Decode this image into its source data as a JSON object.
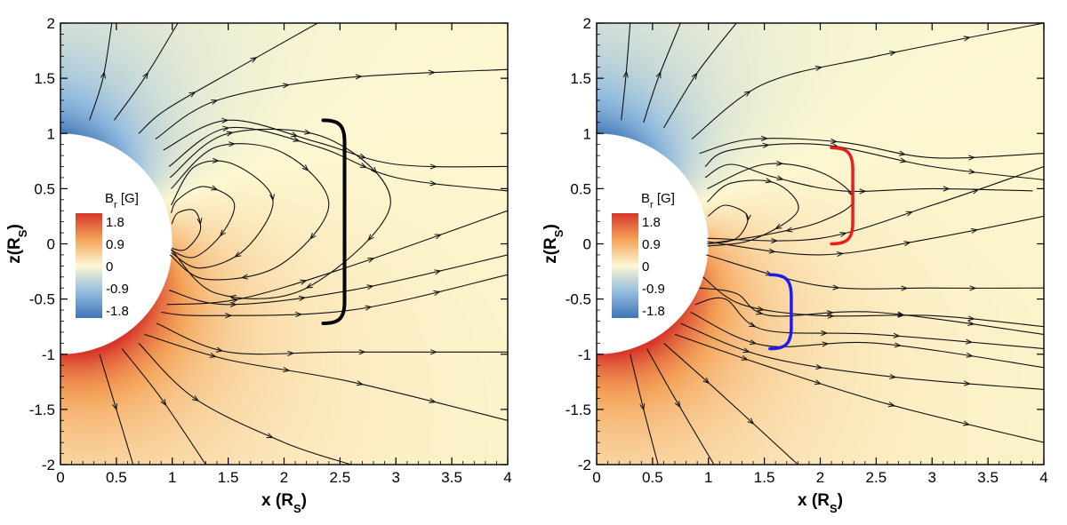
{
  "chart_data": [
    {
      "type": "streamline",
      "panel": "left",
      "xlabel_main": "x (R",
      "xlabel_sub": "S",
      "xlabel_close": ")",
      "ylabel_main": "z(R",
      "ylabel_sub": "S",
      "ylabel_close": ")",
      "xlim": [
        0,
        4
      ],
      "ylim": [
        -2,
        2
      ],
      "xticks": [
        0,
        0.5,
        1,
        1.5,
        2,
        2.5,
        3,
        3.5,
        4
      ],
      "xtick_labels": [
        "0",
        "0.5",
        "1",
        "1.5",
        "2",
        "2.5",
        "3",
        "3.5",
        "4"
      ],
      "yticks": [
        -2,
        -1.5,
        -1,
        -0.5,
        0,
        0.5,
        1,
        1.5,
        2
      ],
      "ytick_labels": [
        "-2",
        "-1.5",
        "-1",
        "-0.5",
        "0",
        "0.5",
        "1",
        "1.5",
        "2"
      ],
      "sun_radius": 1,
      "field": {
        "dipole_amp": 1.9,
        "tilt_deg": 22
      },
      "legend": {
        "title_main": "B",
        "title_sub": "r",
        "title_unit": " [G]",
        "levels": [
          1.8,
          0.9,
          0,
          -0.9,
          -1.8
        ],
        "labels": [
          "1.8",
          "0.9",
          "0",
          "-0.9",
          "-1.8"
        ],
        "colors": [
          "#d7372a",
          "#f4a35a",
          "#fdf8d2",
          "#93bcdf",
          "#3f75b6"
        ],
        "location": "left"
      },
      "bracket": {
        "color": "#000000",
        "x": 2.35,
        "z_range": [
          -0.72,
          1.12
        ]
      },
      "streamlines": [
        {
          "dir": "in",
          "points": [
            [
              0.46,
              2.0
            ],
            [
              0.38,
              1.5
            ],
            [
              0.26,
              1.12
            ]
          ]
        },
        {
          "dir": "in",
          "points": [
            [
              1.05,
              2.0
            ],
            [
              0.75,
              1.5
            ],
            [
              0.48,
              1.12
            ]
          ]
        },
        {
          "dir": "in",
          "points": [
            [
              2.3,
              2.0
            ],
            [
              1.6,
              1.6
            ],
            [
              0.95,
              1.22
            ],
            [
              0.7,
              1.0
            ]
          ]
        },
        {
          "dir": "in",
          "points": [
            [
              4.0,
              1.58
            ],
            [
              2.5,
              1.5
            ],
            [
              1.4,
              1.3
            ],
            [
              0.85,
              0.95
            ]
          ]
        },
        {
          "dir": "in",
          "points": [
            [
              4.0,
              0.7
            ],
            [
              3.0,
              0.72
            ],
            [
              2.3,
              0.92
            ],
            [
              1.5,
              1.12
            ],
            [
              0.92,
              0.85
            ]
          ]
        },
        {
          "dir": "in",
          "points": [
            [
              4.0,
              0.48
            ],
            [
              3.0,
              0.6
            ],
            [
              2.3,
              0.88
            ],
            [
              1.5,
              1.05
            ],
            [
              0.97,
              0.7
            ]
          ]
        },
        {
          "dir": "in",
          "points": [
            [
              0.99,
              -0.05
            ],
            [
              1.4,
              -0.45
            ],
            [
              2.2,
              -0.4
            ],
            [
              2.95,
              0.35
            ],
            [
              2.4,
              0.95
            ],
            [
              1.5,
              1.0
            ],
            [
              0.98,
              0.6
            ]
          ]
        },
        {
          "dir": "in",
          "points": [
            [
              0.98,
              -0.1
            ],
            [
              1.3,
              -0.32
            ],
            [
              1.95,
              -0.2
            ],
            [
              2.4,
              0.35
            ],
            [
              2.0,
              0.82
            ],
            [
              1.4,
              0.88
            ],
            [
              0.99,
              0.5
            ]
          ]
        },
        {
          "dir": "in",
          "points": [
            [
              0.99,
              -0.08
            ],
            [
              1.25,
              -0.22
            ],
            [
              1.65,
              -0.05
            ],
            [
              1.9,
              0.4
            ],
            [
              1.55,
              0.72
            ],
            [
              1.2,
              0.7
            ],
            [
              0.99,
              0.35
            ]
          ]
        },
        {
          "dir": "in",
          "points": [
            [
              0.99,
              -0.06
            ],
            [
              1.2,
              -0.12
            ],
            [
              1.45,
              0.1
            ],
            [
              1.55,
              0.38
            ],
            [
              1.28,
              0.52
            ],
            [
              1.05,
              0.4
            ],
            [
              0.99,
              0.28
            ]
          ]
        },
        {
          "dir": "in",
          "points": [
            [
              0.995,
              -0.04
            ],
            [
              1.12,
              -0.05
            ],
            [
              1.25,
              0.12
            ],
            [
              1.2,
              0.3
            ],
            [
              1.05,
              0.28
            ],
            [
              0.995,
              0.18
            ]
          ]
        },
        {
          "dir": "out",
          "points": [
            [
              0.97,
              -0.42
            ],
            [
              1.5,
              -0.55
            ],
            [
              2.6,
              -0.42
            ],
            [
              4.0,
              -0.1
            ]
          ]
        },
        {
          "dir": "out",
          "points": [
            [
              0.95,
              -0.55
            ],
            [
              1.6,
              -0.5
            ],
            [
              2.6,
              -0.2
            ],
            [
              4.0,
              0.3
            ]
          ]
        },
        {
          "dir": "out",
          "points": [
            [
              0.9,
              -0.62
            ],
            [
              1.3,
              -0.65
            ],
            [
              2.6,
              -0.6
            ],
            [
              4.0,
              -0.28
            ]
          ]
        },
        {
          "dir": "out",
          "points": [
            [
              0.86,
              -0.72
            ],
            [
              1.5,
              -0.98
            ],
            [
              2.5,
              -0.98
            ],
            [
              4.0,
              -0.98
            ]
          ]
        },
        {
          "dir": "out",
          "points": [
            [
              0.75,
              -0.82
            ],
            [
              1.5,
              -1.05
            ],
            [
              2.6,
              -1.25
            ],
            [
              4.0,
              -1.6
            ]
          ]
        },
        {
          "dir": "out",
          "points": [
            [
              0.7,
              -0.9
            ],
            [
              1.2,
              -1.4
            ],
            [
              2.0,
              -1.8
            ],
            [
              2.6,
              -2.0
            ]
          ]
        },
        {
          "dir": "out",
          "points": [
            [
              0.55,
              -0.95
            ],
            [
              0.9,
              -1.4
            ],
            [
              1.3,
              -2.0
            ]
          ]
        },
        {
          "dir": "out",
          "points": [
            [
              0.35,
              -1.0
            ],
            [
              0.5,
              -1.5
            ],
            [
              0.65,
              -2.0
            ]
          ]
        }
      ]
    },
    {
      "type": "streamline",
      "panel": "right",
      "xlabel_main": "x (R",
      "xlabel_sub": "S",
      "xlabel_close": ")",
      "ylabel_main": "z(R",
      "ylabel_sub": "S",
      "ylabel_close": ")",
      "xlim": [
        0,
        4
      ],
      "ylim": [
        -2,
        2
      ],
      "xticks": [
        0,
        0.5,
        1,
        1.5,
        2,
        2.5,
        3,
        3.5,
        4
      ],
      "xtick_labels": [
        "0",
        "0.5",
        "1",
        "1.5",
        "2",
        "2.5",
        "3",
        "3.5",
        "4"
      ],
      "yticks": [
        -2,
        -1.5,
        -1,
        -0.5,
        0,
        0.5,
        1,
        1.5,
        2
      ],
      "ytick_labels": [
        "-2",
        "-1.5",
        "-1",
        "-0.5",
        "0",
        "0.5",
        "1",
        "1.5",
        "2"
      ],
      "sun_radius": 1,
      "field": {
        "dipole_amp": 1.9,
        "tilt_deg": 22
      },
      "legend": {
        "title_main": "B",
        "title_sub": "r",
        "title_unit": " [G]",
        "levels": [
          1.8,
          0.9,
          0,
          -0.9,
          -1.8
        ],
        "labels": [
          "1.8",
          "0.9",
          "0",
          "-0.9",
          "-1.8"
        ],
        "colors": [
          "#d7372a",
          "#f4a35a",
          "#fdf8d2",
          "#93bcdf",
          "#3f75b6"
        ],
        "location": "left"
      },
      "brackets": [
        {
          "color": "#ee1c1c",
          "x": 2.1,
          "z_range": [
            0.0,
            0.87
          ]
        },
        {
          "color": "#1c1cee",
          "x": 1.55,
          "z_range": [
            -0.95,
            -0.28
          ]
        }
      ],
      "streamlines": [
        {
          "dir": "in",
          "points": [
            [
              0.3,
              2.0
            ],
            [
              0.26,
              1.5
            ],
            [
              0.22,
              1.12
            ]
          ]
        },
        {
          "dir": "in",
          "points": [
            [
              0.75,
              2.0
            ],
            [
              0.55,
              1.5
            ],
            [
              0.42,
              1.1
            ]
          ]
        },
        {
          "dir": "in",
          "points": [
            [
              1.25,
              2.0
            ],
            [
              0.9,
              1.55
            ],
            [
              0.6,
              1.05
            ]
          ]
        },
        {
          "dir": "in",
          "points": [
            [
              4.0,
              2.0
            ],
            [
              2.5,
              1.7
            ],
            [
              1.5,
              1.45
            ],
            [
              0.85,
              0.95
            ]
          ]
        },
        {
          "dir": "in",
          "points": [
            [
              4.0,
              0.82
            ],
            [
              3.0,
              0.78
            ],
            [
              2.2,
              0.92
            ],
            [
              1.4,
              0.95
            ],
            [
              0.92,
              0.82
            ]
          ]
        },
        {
          "dir": "in",
          "points": [
            [
              4.0,
              0.58
            ],
            [
              3.0,
              0.7
            ],
            [
              2.0,
              0.9
            ],
            [
              1.2,
              0.85
            ],
            [
              0.97,
              0.7
            ]
          ]
        },
        {
          "dir": "in",
          "points": [
            [
              3.9,
              0.48
            ],
            [
              3.0,
              0.5
            ],
            [
              2.2,
              0.48
            ],
            [
              1.6,
              0.6
            ],
            [
              1.2,
              0.72
            ],
            [
              0.97,
              0.6
            ]
          ]
        },
        {
          "dir": "in",
          "points": [
            [
              0.99,
              0.0
            ],
            [
              1.5,
              0.08
            ],
            [
              2.0,
              0.2
            ],
            [
              2.3,
              0.4
            ],
            [
              2.0,
              0.65
            ],
            [
              1.5,
              0.72
            ],
            [
              0.99,
              0.5
            ]
          ]
        },
        {
          "dir": "in",
          "points": [
            [
              0.99,
              -0.02
            ],
            [
              1.4,
              0.04
            ],
            [
              1.8,
              0.3
            ],
            [
              1.6,
              0.55
            ],
            [
              1.2,
              0.55
            ],
            [
              0.99,
              0.38
            ]
          ]
        },
        {
          "dir": "in",
          "points": [
            [
              0.995,
              0.0
            ],
            [
              1.25,
              0.05
            ],
            [
              1.35,
              0.25
            ],
            [
              1.15,
              0.35
            ],
            [
              0.995,
              0.25
            ]
          ]
        },
        {
          "dir": "out",
          "points": [
            [
              0.99,
              0.05
            ],
            [
              2.0,
              0.05
            ],
            [
              3.0,
              0.35
            ],
            [
              4.0,
              0.7
            ]
          ]
        },
        {
          "dir": "out",
          "points": [
            [
              0.99,
              0.02
            ],
            [
              2.0,
              -0.1
            ],
            [
              3.0,
              0.05
            ],
            [
              4.0,
              0.25
            ]
          ]
        },
        {
          "dir": "out",
          "points": [
            [
              0.98,
              -0.1
            ],
            [
              2.0,
              -0.38
            ],
            [
              3.0,
              -0.4
            ],
            [
              4.0,
              -0.4
            ]
          ]
        },
        {
          "dir": "out",
          "points": [
            [
              0.95,
              -0.3
            ],
            [
              1.3,
              -0.55
            ],
            [
              2.0,
              -0.65
            ],
            [
              3.0,
              -0.65
            ],
            [
              4.0,
              -0.75
            ]
          ]
        },
        {
          "dir": "out",
          "points": [
            [
              0.92,
              -0.4
            ],
            [
              1.25,
              -0.45
            ],
            [
              1.55,
              -0.65
            ],
            [
              2.5,
              -0.62
            ],
            [
              4.0,
              -0.82
            ]
          ]
        },
        {
          "dir": "out",
          "points": [
            [
              0.88,
              -0.55
            ],
            [
              1.15,
              -0.5
            ],
            [
              1.5,
              -0.78
            ],
            [
              2.5,
              -0.82
            ],
            [
              4.0,
              -0.95
            ]
          ]
        },
        {
          "dir": "out",
          "points": [
            [
              0.84,
              -0.62
            ],
            [
              1.5,
              -0.92
            ],
            [
              2.5,
              -0.9
            ],
            [
              4.0,
              -1.12
            ]
          ]
        },
        {
          "dir": "out",
          "points": [
            [
              0.75,
              -0.72
            ],
            [
              1.5,
              -1.02
            ],
            [
              2.6,
              -1.2
            ],
            [
              4.0,
              -1.32
            ]
          ]
        },
        {
          "dir": "out",
          "points": [
            [
              0.7,
              -0.82
            ],
            [
              1.5,
              -1.1
            ],
            [
              2.6,
              -1.45
            ],
            [
              4.0,
              -1.8
            ]
          ]
        },
        {
          "dir": "out",
          "points": [
            [
              0.6,
              -0.9
            ],
            [
              1.1,
              -1.35
            ],
            [
              1.8,
              -2.0
            ]
          ]
        },
        {
          "dir": "out",
          "points": [
            [
              0.45,
              -0.95
            ],
            [
              0.7,
              -1.4
            ],
            [
              1.05,
              -2.0
            ]
          ]
        },
        {
          "dir": "out",
          "points": [
            [
              0.3,
              -1.0
            ],
            [
              0.42,
              -1.5
            ],
            [
              0.55,
              -2.0
            ]
          ]
        }
      ]
    }
  ]
}
